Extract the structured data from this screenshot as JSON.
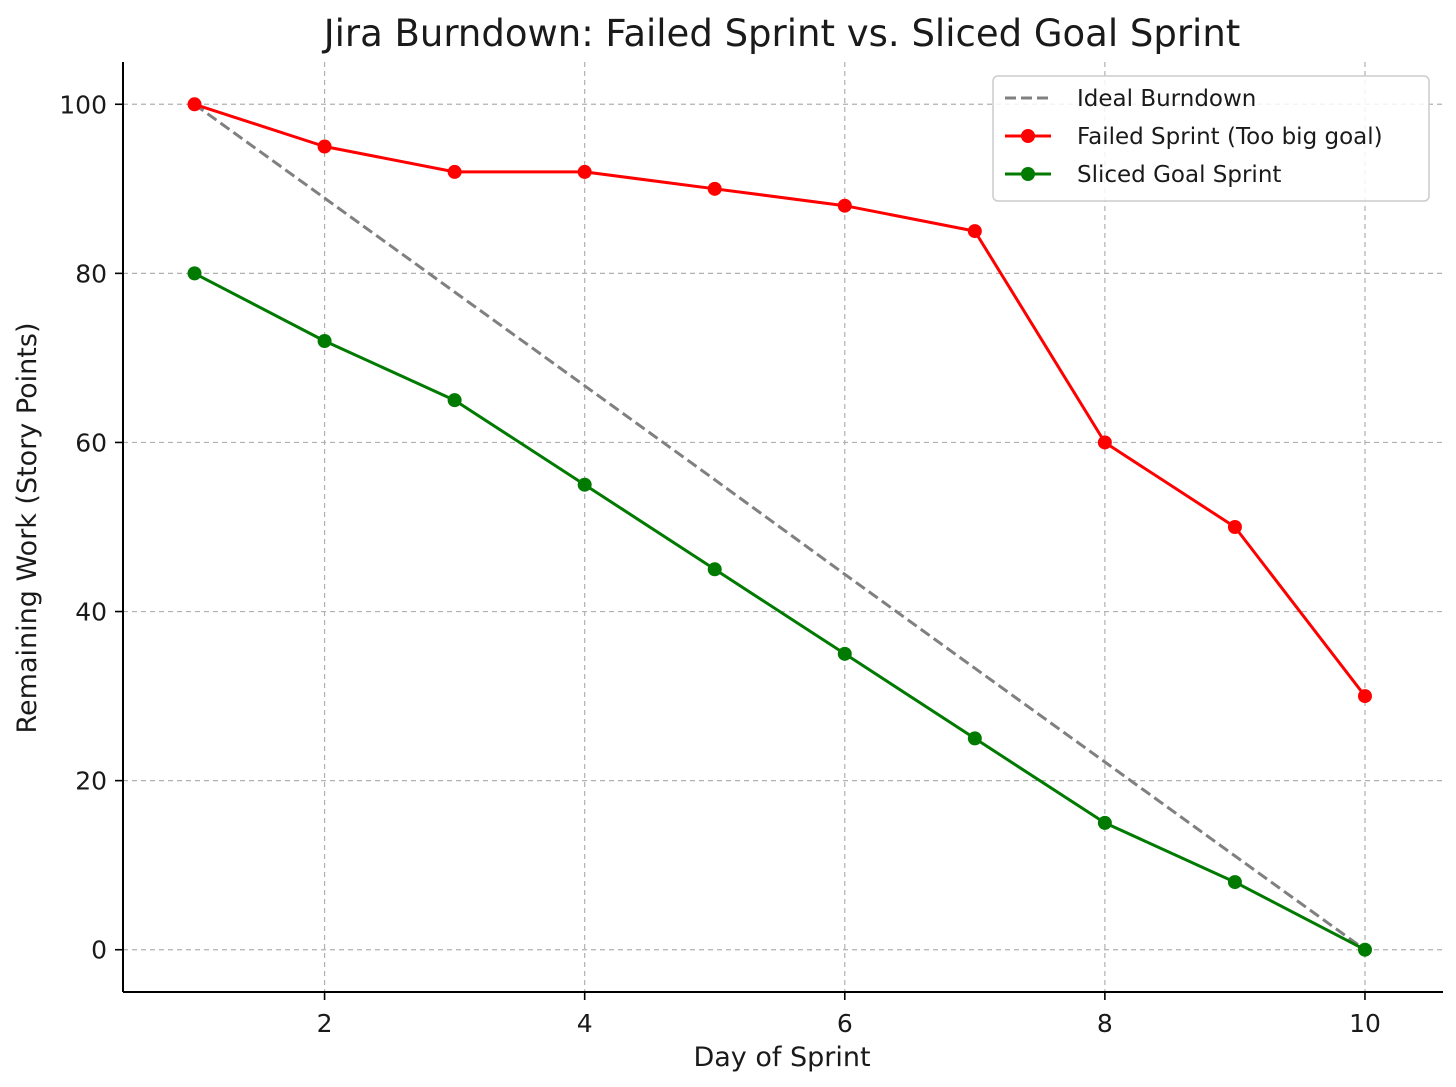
{
  "chart_data": {
    "type": "line",
    "title": "Jira Burndown: Failed Sprint vs. Sliced Goal Sprint",
    "xlabel": "Day of Sprint",
    "ylabel": "Remaining Work (Story Points)",
    "xlim": [
      0.45,
      10.6
    ],
    "ylim": [
      -5,
      105
    ],
    "xticks": [
      2,
      4,
      6,
      8,
      10
    ],
    "yticks": [
      0,
      20,
      40,
      60,
      80,
      100
    ],
    "grid": true,
    "legend": "top-right",
    "x": [
      1,
      2,
      3,
      4,
      5,
      6,
      7,
      8,
      9,
      10
    ],
    "series": [
      {
        "name": "Ideal Burndown",
        "style": "dashed",
        "marker": false,
        "color": "#808080",
        "values": [
          100,
          88.9,
          77.8,
          66.7,
          55.6,
          44.4,
          33.3,
          22.2,
          11.1,
          0
        ]
      },
      {
        "name": "Failed Sprint (Too big goal)",
        "style": "solid",
        "marker": true,
        "color": "#ff0000",
        "values": [
          100,
          95,
          92,
          92,
          90,
          88,
          85,
          60,
          50,
          30
        ]
      },
      {
        "name": "Sliced Goal Sprint",
        "style": "solid",
        "marker": true,
        "color": "#007a00",
        "values": [
          80,
          72,
          65,
          55,
          45,
          35,
          25,
          15,
          8,
          0
        ]
      }
    ]
  }
}
